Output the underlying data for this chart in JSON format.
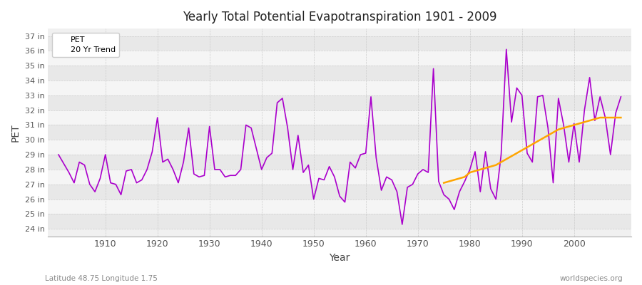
{
  "title": "Yearly Total Potential Evapotranspiration 1901 - 2009",
  "xlabel": "Year",
  "ylabel": "PET",
  "subtitle_left": "Latitude 48.75 Longitude 1.75",
  "subtitle_right": "worldspecies.org",
  "pet_color": "#aa00cc",
  "trend_color": "#FFA500",
  "bg_color": "#ffffff",
  "plot_bg_color": "#f0f0f0",
  "ylim": [
    23.5,
    37.5
  ],
  "yticks": [
    24,
    25,
    26,
    27,
    28,
    29,
    30,
    31,
    32,
    33,
    34,
    35,
    36,
    37
  ],
  "xlim": [
    1899,
    2011
  ],
  "xticks": [
    1910,
    1920,
    1930,
    1940,
    1950,
    1960,
    1970,
    1980,
    1990,
    2000
  ],
  "years": [
    1901,
    1902,
    1903,
    1904,
    1905,
    1906,
    1907,
    1908,
    1909,
    1910,
    1911,
    1912,
    1913,
    1914,
    1915,
    1916,
    1917,
    1918,
    1919,
    1920,
    1921,
    1922,
    1923,
    1924,
    1925,
    1926,
    1927,
    1928,
    1929,
    1930,
    1931,
    1932,
    1933,
    1934,
    1935,
    1936,
    1937,
    1938,
    1939,
    1940,
    1941,
    1942,
    1943,
    1944,
    1945,
    1946,
    1947,
    1948,
    1949,
    1950,
    1951,
    1952,
    1953,
    1954,
    1955,
    1956,
    1957,
    1958,
    1959,
    1960,
    1961,
    1962,
    1963,
    1964,
    1965,
    1966,
    1967,
    1968,
    1969,
    1970,
    1971,
    1972,
    1973,
    1974,
    1975,
    1976,
    1977,
    1978,
    1979,
    1980,
    1981,
    1982,
    1983,
    1984,
    1985,
    1986,
    1987,
    1988,
    1989,
    1990,
    1991,
    1992,
    1993,
    1994,
    1995,
    1996,
    1997,
    1998,
    1999,
    2000,
    2001,
    2002,
    2003,
    2004,
    2005,
    2006,
    2007,
    2008,
    2009
  ],
  "pet_values": [
    29.0,
    28.4,
    27.8,
    27.1,
    28.5,
    28.3,
    27.0,
    26.5,
    27.4,
    29.0,
    27.1,
    27.0,
    26.3,
    27.9,
    28.0,
    27.1,
    27.3,
    28.0,
    29.2,
    31.5,
    28.5,
    28.7,
    28.0,
    27.1,
    28.5,
    30.8,
    27.7,
    27.5,
    27.6,
    30.9,
    28.0,
    28.0,
    27.5,
    27.6,
    27.6,
    28.0,
    31.0,
    30.8,
    29.4,
    28.0,
    28.8,
    29.1,
    32.5,
    32.8,
    30.8,
    28.0,
    30.3,
    27.8,
    28.3,
    26.0,
    27.4,
    27.3,
    28.2,
    27.5,
    26.2,
    25.8,
    28.5,
    28.1,
    29.0,
    29.1,
    32.9,
    28.8,
    26.6,
    27.5,
    27.3,
    26.5,
    24.3,
    26.8,
    27.0,
    27.7,
    28.0,
    27.8,
    34.8,
    27.2,
    26.3,
    26.0,
    25.3,
    26.5,
    27.2,
    28.0,
    29.2,
    26.5,
    29.2,
    26.7,
    26.0,
    29.0,
    36.1,
    31.2,
    33.5,
    33.0,
    29.1,
    28.5,
    32.9,
    33.0,
    30.8,
    27.1,
    32.8,
    31.0,
    28.5,
    31.1,
    28.5,
    32.0,
    34.2,
    31.3,
    32.9,
    31.5,
    29.0,
    31.8,
    32.9
  ],
  "trend_years": [
    1975,
    1976,
    1977,
    1978,
    1979,
    1980,
    1981,
    1982,
    1983,
    1984,
    1985,
    1986,
    1987,
    1988,
    1989,
    1990,
    1991,
    1992,
    1993,
    1994,
    1995,
    1996,
    1997,
    1998,
    1999,
    2000,
    2001,
    2002,
    2003,
    2004,
    2005,
    2006,
    2007,
    2008,
    2009
  ],
  "trend_values": [
    27.1,
    27.2,
    27.3,
    27.4,
    27.5,
    27.8,
    27.9,
    28.0,
    28.1,
    28.2,
    28.3,
    28.5,
    28.7,
    28.9,
    29.1,
    29.3,
    29.5,
    29.7,
    29.9,
    30.1,
    30.3,
    30.5,
    30.7,
    30.8,
    30.9,
    31.0,
    31.1,
    31.2,
    31.3,
    31.4,
    31.5,
    31.5,
    31.5,
    31.5,
    31.5
  ],
  "band_colors": [
    "#e8e8e8",
    "#f5f5f5"
  ]
}
